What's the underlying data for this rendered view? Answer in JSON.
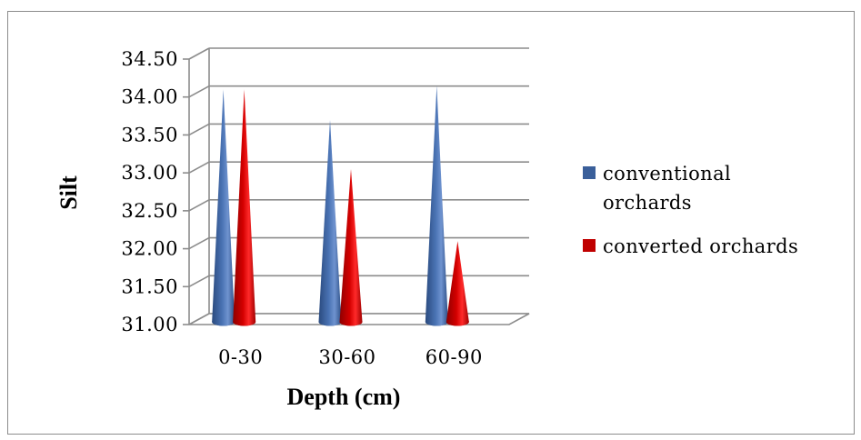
{
  "chart_data": {
    "type": "bar",
    "title": "",
    "xlabel": "Depth (cm)",
    "ylabel": "Silt",
    "categories": [
      "0-30",
      "30-60",
      "60-90"
    ],
    "ylim": [
      31.0,
      34.5
    ],
    "yticks": [
      "31.00",
      "31.50",
      "32.00",
      "32.50",
      "33.00",
      "33.50",
      "34.00",
      "34.50"
    ],
    "series": [
      {
        "name": "conventional orchards",
        "color": "#3a5f9a",
        "values": [
          34.1,
          33.7,
          34.15
        ]
      },
      {
        "name": "converted orchards",
        "color": "#c00000",
        "values": [
          34.1,
          33.05,
          32.1
        ]
      }
    ],
    "legend": {
      "position": "right",
      "labels": [
        [
          "conventional",
          "orchards"
        ],
        [
          "converted orchards"
        ]
      ]
    },
    "grid": true,
    "style": "3d-cone"
  }
}
